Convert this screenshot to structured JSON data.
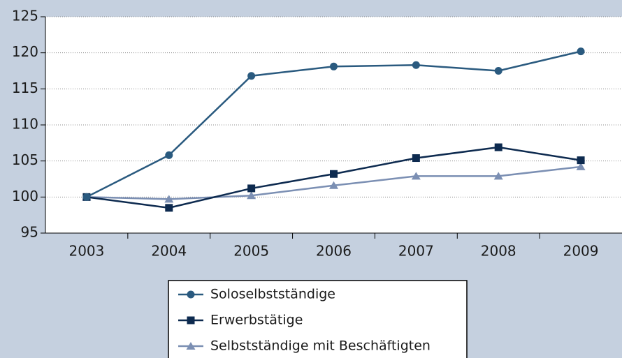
{
  "chart_data": {
    "type": "line",
    "categories": [
      "2003",
      "2004",
      "2005",
      "2006",
      "2007",
      "2008",
      "2009"
    ],
    "series": [
      {
        "name": "Soloselbstständige",
        "color": "#2a5a7f",
        "marker": "circle",
        "values": [
          100,
          105.8,
          116.8,
          118.1,
          118.3,
          117.5,
          120.2
        ]
      },
      {
        "name": "Erwerbstätige",
        "color": "#0d2a4f",
        "marker": "square",
        "values": [
          100,
          98.5,
          101.2,
          103.2,
          105.4,
          106.9,
          105.1
        ]
      },
      {
        "name": "Selbstständige mit Beschäftigten",
        "color": "#7b8fb3",
        "marker": "triangle",
        "values": [
          100,
          99.7,
          100.2,
          101.6,
          102.9,
          102.9,
          104.2
        ]
      }
    ],
    "ylim": [
      95,
      125
    ],
    "yticks": [
      95,
      100,
      105,
      110,
      115,
      120,
      125
    ],
    "grid": true,
    "legend": "bottom"
  }
}
